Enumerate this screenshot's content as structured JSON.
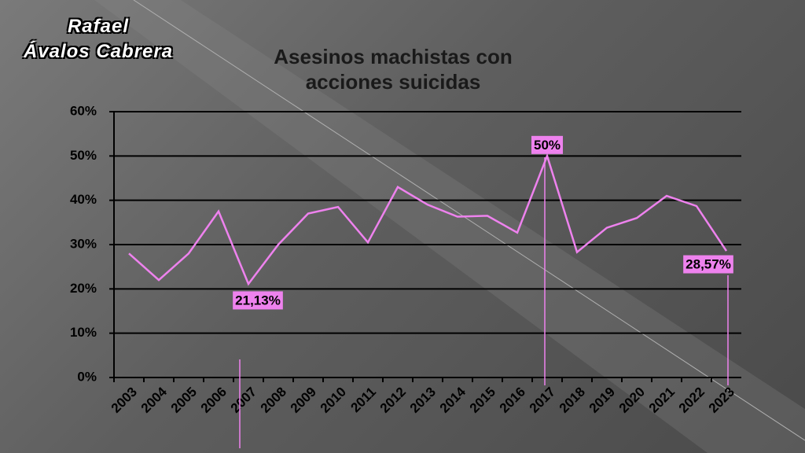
{
  "author": [
    "Rafael",
    "Ávalos Cabrera"
  ],
  "chart_data": {
    "type": "line",
    "title": "Asesinos machistas con acciones suicidas",
    "categories": [
      "2003",
      "2004",
      "2005",
      "2006",
      "2007",
      "2008",
      "2009",
      "2010",
      "2011",
      "2012",
      "2013",
      "2014",
      "2015",
      "2016",
      "2017",
      "2018",
      "2019",
      "2020",
      "2021",
      "2022",
      "2023"
    ],
    "values": [
      28,
      22,
      28,
      37.5,
      21.13,
      30,
      37,
      38.5,
      30.5,
      43,
      39,
      36.3,
      36.5,
      32.7,
      50,
      28.3,
      33.8,
      36,
      41,
      38.7,
      28.57
    ],
    "value_labels": [
      null,
      null,
      null,
      null,
      "21,13%",
      null,
      null,
      null,
      null,
      null,
      null,
      null,
      null,
      null,
      "50%",
      null,
      null,
      null,
      null,
      null,
      "28,57%"
    ],
    "color": "#ee82ee",
    "ylim": [
      0,
      60
    ],
    "yticks": [
      {
        "value": 0,
        "label": "0%"
      },
      {
        "value": 10,
        "label": "10%"
      },
      {
        "value": 20,
        "label": "20%"
      },
      {
        "value": 30,
        "label": "30%"
      },
      {
        "value": 40,
        "label": "40%"
      },
      {
        "value": 50,
        "label": "50%"
      },
      {
        "value": 60,
        "label": "60%"
      }
    ],
    "grid": true
  }
}
